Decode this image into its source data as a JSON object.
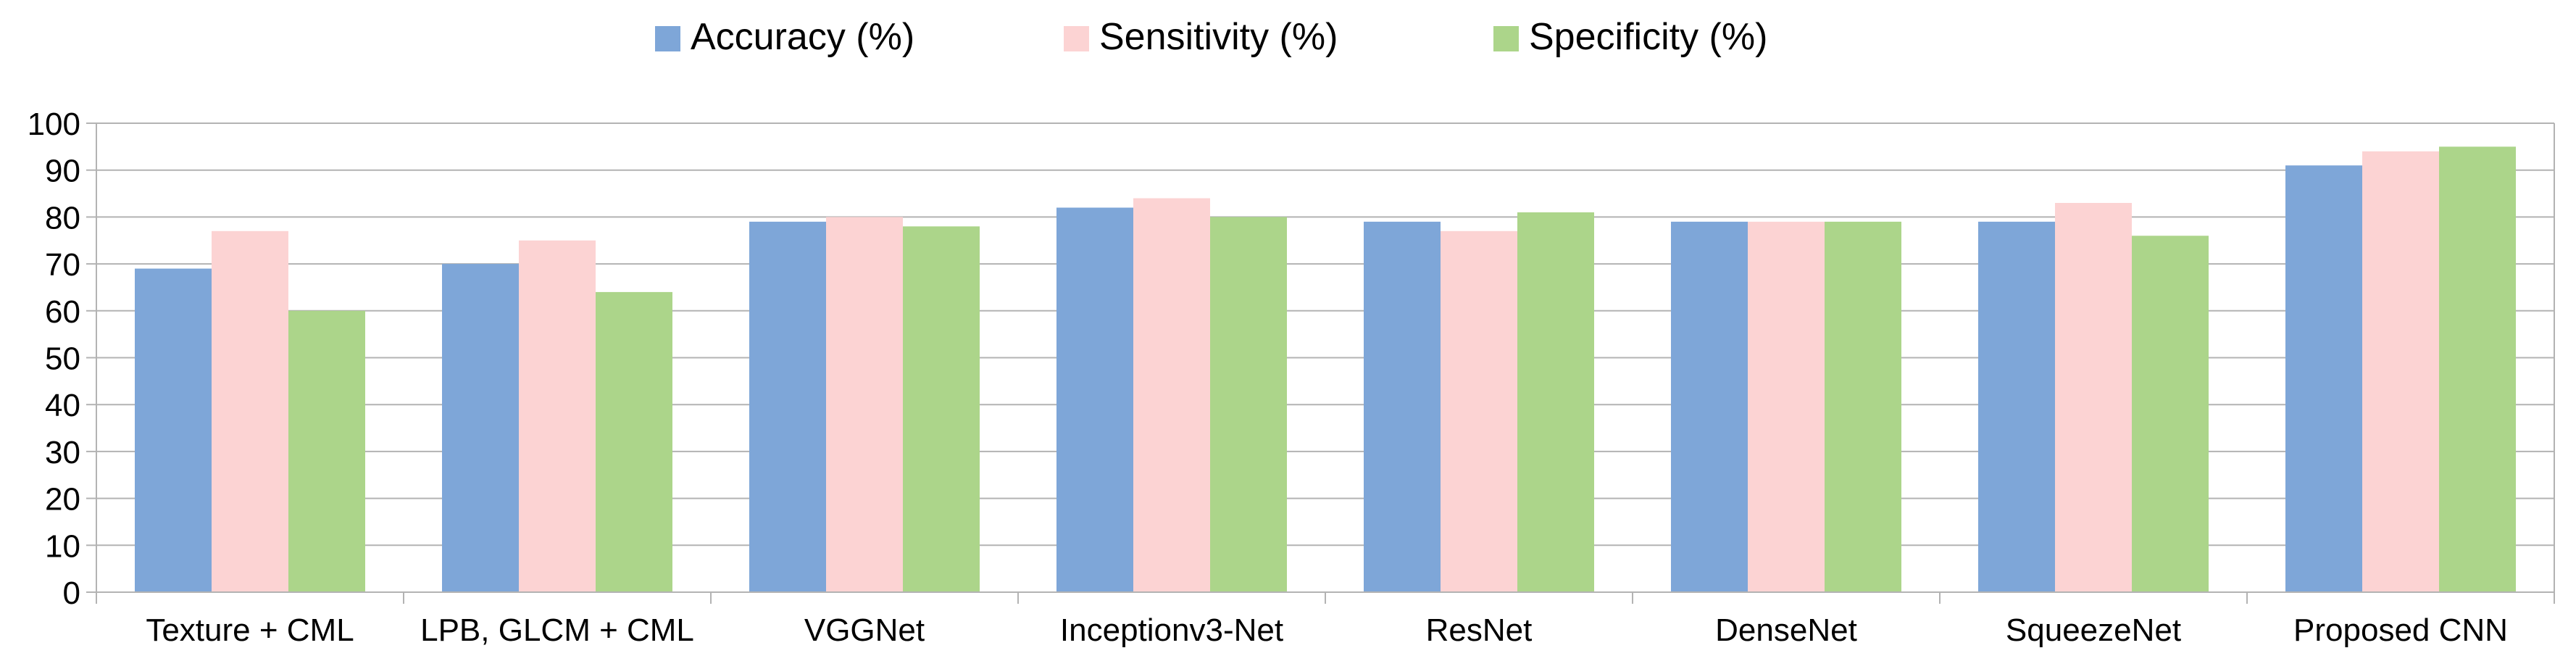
{
  "chart_data": {
    "type": "bar",
    "title": "",
    "xlabel": "",
    "ylabel": "",
    "ylim": [
      0,
      100
    ],
    "yticks": [
      0,
      10,
      20,
      30,
      40,
      50,
      60,
      70,
      80,
      90,
      100
    ],
    "grid": true,
    "legend_position": "top-center",
    "categories": [
      "Texture + CML",
      "LPB, GLCM + CML",
      "VGGNet",
      "Inceptionv3-Net",
      "ResNet",
      "DenseNet",
      "SqueezeNet",
      "Proposed CNN"
    ],
    "series": [
      {
        "name": "Accuracy (%)",
        "color": "#7ea6d8",
        "values": [
          69,
          70,
          79,
          82,
          79,
          79,
          79,
          91
        ]
      },
      {
        "name": "Sensitivity (%)",
        "color": "#fcd3d3",
        "values": [
          77,
          75,
          80,
          84,
          77,
          79,
          83,
          94
        ]
      },
      {
        "name": "Specificity (%)",
        "color": "#acd58a",
        "values": [
          60,
          64,
          78,
          80,
          81,
          79,
          76,
          95
        ]
      }
    ]
  }
}
